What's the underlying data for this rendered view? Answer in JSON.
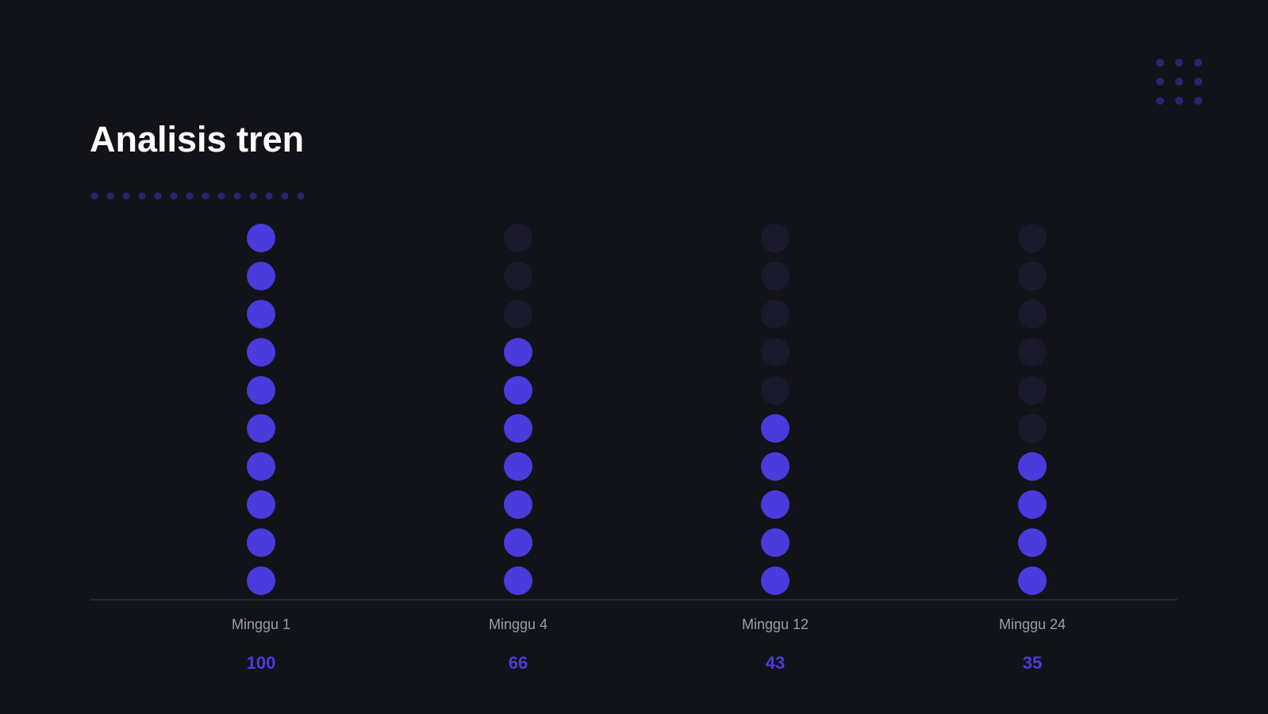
{
  "title": "Analisis tren",
  "colors": {
    "background": "#121319",
    "accent": "#4a3bdc",
    "inactive_dot": "#1b1a2d",
    "decor_dot": "#2b2470",
    "axis": "#3a3b47",
    "label": "#9a9ca8"
  },
  "chart_data": {
    "type": "bar",
    "categories": [
      "Minggu 1",
      "Minggu 4",
      "Minggu 12",
      "Minggu 24"
    ],
    "values": [
      100,
      66,
      43,
      35
    ],
    "value_labels": [
      "100",
      "66",
      "43",
      "35"
    ],
    "ylim": [
      0,
      100
    ],
    "title": "Analisis tren",
    "xlabel": "",
    "ylabel": "",
    "grid": false
  }
}
